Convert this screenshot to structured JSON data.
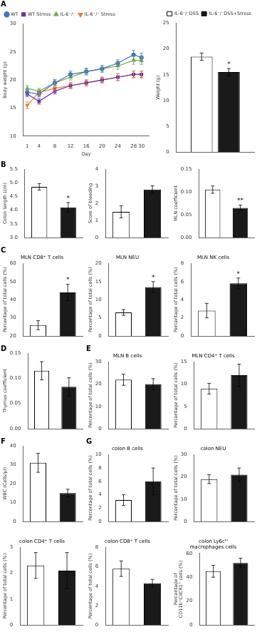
{
  "chart_data": [
    {
      "type": "line",
      "panel_label": "A",
      "xlabel": "Day",
      "ylabel": "Body weight (g)",
      "x": [
        1,
        4,
        8,
        12,
        16,
        20,
        24,
        28,
        30
      ],
      "xlim": [
        0,
        32
      ],
      "xticks": [
        1,
        4,
        8,
        12,
        16,
        20,
        24,
        28,
        30
      ],
      "ylim": [
        10,
        30
      ],
      "yticks": [
        10,
        15,
        20,
        25,
        30
      ],
      "grid": false,
      "legend": "upper left",
      "series": [
        {
          "name": "WT",
          "color": "#4472C4",
          "marker": "circle",
          "values": [
            17.8,
            17.5,
            19.5,
            21.0,
            21.5,
            22.0,
            23.0,
            24.5,
            24.0
          ],
          "errors": [
            0.5,
            0.5,
            0.6,
            0.6,
            0.6,
            0.6,
            0.6,
            0.8,
            0.8
          ]
        },
        {
          "name": "WT Stress",
          "color": "#7030A0",
          "marker": "square",
          "values": [
            17.5,
            16.2,
            18.0,
            19.0,
            19.5,
            20.0,
            20.5,
            21.0,
            21.0
          ],
          "errors": [
            0.5,
            0.5,
            0.5,
            0.5,
            0.5,
            0.5,
            0.6,
            0.6,
            0.6
          ]
        },
        {
          "name": "IL-6⁻/⁻",
          "color": "#70AD47",
          "marker": "triangle-up",
          "values": [
            18.5,
            18.0,
            19.5,
            20.5,
            21.5,
            22.0,
            22.5,
            23.5,
            23.5
          ],
          "errors": [
            0.5,
            0.5,
            0.5,
            0.5,
            0.5,
            0.6,
            0.6,
            0.7,
            0.7
          ]
        },
        {
          "name": "IL-6⁻/⁻ Stress",
          "color": "#ED7D31",
          "marker": "triangle-down",
          "values": [
            15.5,
            17.8,
            18.5,
            19.0,
            19.5,
            20.0,
            20.5,
            21.0,
            21.0
          ],
          "errors": [
            0.6,
            0.5,
            0.5,
            0.5,
            0.5,
            0.5,
            0.6,
            0.6,
            0.6
          ]
        }
      ]
    },
    {
      "type": "bar",
      "ylabel": "Weight (g)",
      "categories": [
        null
      ],
      "ylim": [
        0,
        25
      ],
      "yticks": [
        0,
        5,
        10,
        15,
        20,
        25
      ],
      "grid": false,
      "legend": "upper right",
      "tick_labels": "y",
      "series": [
        {
          "name": "IL-6⁻/⁻DSS",
          "color": "#FFFFFF",
          "values": [
            18.5
          ],
          "errors": [
            0.7
          ]
        },
        {
          "name": "IL-6⁻/⁻DSS+Stress",
          "color": "#1a1a1a",
          "values": [
            15.5
          ],
          "errors": [
            0.7
          ]
        }
      ],
      "annotations": [
        {
          "text": "*",
          "series": "IL-6⁻/⁻DSS+Stress",
          "index": 0
        }
      ]
    },
    {
      "type": "bar",
      "panel_label": "B",
      "ylabel": "Colon length (cm)",
      "categories": [
        null,
        null
      ],
      "values": [
        4.85,
        4.1
      ],
      "errors": [
        0.12,
        0.18
      ],
      "colors": [
        "#FFFFFF",
        "#1a1a1a"
      ],
      "ylim": [
        3.0,
        5.5
      ],
      "yticks": [
        {
          "value": 3.0,
          "label": "3.0"
        },
        {
          "value": 3.5,
          "label": "3.5"
        },
        {
          "value": 4.0,
          "label": "4.0"
        },
        {
          "value": 4.5,
          "label": "4.5"
        },
        {
          "value": 5.0,
          "label": "5.0"
        },
        {
          "value": 5.5,
          "label": "5.5"
        }
      ],
      "grid": false,
      "tick_labels": "y",
      "annotations": [
        {
          "text": "*",
          "index": 1
        }
      ]
    },
    {
      "type": "bar",
      "ylabel": "Score of bleeding",
      "categories": [
        null,
        null
      ],
      "values": [
        1.5,
        2.8
      ],
      "errors": [
        0.35,
        0.22
      ],
      "colors": [
        "#FFFFFF",
        "#1a1a1a"
      ],
      "ylim": [
        0,
        4
      ],
      "yticks": [
        0,
        1,
        2,
        3,
        4
      ],
      "grid": false,
      "tick_labels": "y"
    },
    {
      "type": "bar",
      "ylabel": "MLN coefficient",
      "categories": [
        null,
        null
      ],
      "values": [
        0.105,
        0.065
      ],
      "errors": [
        0.008,
        0.006
      ],
      "colors": [
        "#FFFFFF",
        "#1a1a1a"
      ],
      "ylim": [
        0.0,
        0.15
      ],
      "yticks": [
        {
          "value": 0.0,
          "label": "0.00"
        },
        {
          "value": 0.05,
          "label": "0.05"
        },
        {
          "value": 0.1,
          "label": "0.10"
        },
        {
          "value": 0.15,
          "label": "0.15"
        }
      ],
      "grid": false,
      "tick_labels": "y",
      "annotations": [
        {
          "text": "**",
          "index": 1
        }
      ]
    },
    {
      "type": "bar",
      "panel_label": "C",
      "title": "MLN CD8⁺ T cells",
      "ylabel": "Percentage of total cells (%)",
      "categories": [
        null,
        null
      ],
      "values": [
        26.0,
        44.0
      ],
      "errors": [
        2.5,
        4.5
      ],
      "colors": [
        "#FFFFFF",
        "#1a1a1a"
      ],
      "ylim": [
        20,
        60
      ],
      "yticks": [
        20,
        30,
        40,
        50,
        60
      ],
      "grid": false,
      "tick_labels": "y",
      "annotations": [
        {
          "text": "*",
          "index": 1
        }
      ]
    },
    {
      "type": "bar",
      "title": "MLN NEU",
      "ylabel": "Percentage of total cells (%)",
      "categories": [
        null,
        null
      ],
      "values": [
        6.5,
        13.5
      ],
      "errors": [
        0.8,
        1.5
      ],
      "colors": [
        "#FFFFFF",
        "#1a1a1a"
      ],
      "ylim": [
        0,
        20
      ],
      "yticks": [
        0,
        5,
        10,
        15,
        20
      ],
      "grid": false,
      "tick_labels": "y",
      "annotations": [
        {
          "text": "*",
          "index": 1
        }
      ]
    },
    {
      "type": "bar",
      "title": "MLN NK cells",
      "ylabel": "Percentage of total cells (%)",
      "categories": [
        null,
        null
      ],
      "values": [
        2.8,
        5.8
      ],
      "errors": [
        0.8,
        0.6
      ],
      "colors": [
        "#FFFFFF",
        "#1a1a1a"
      ],
      "ylim": [
        0,
        8
      ],
      "yticks": [
        0,
        2,
        4,
        6,
        8
      ],
      "grid": false,
      "tick_labels": "y",
      "annotations": [
        {
          "text": "*",
          "index": 1
        }
      ]
    },
    {
      "type": "bar",
      "panel_label": "D",
      "ylabel": "Thymus coefficient",
      "categories": [
        null,
        null
      ],
      "values": [
        0.115,
        0.083
      ],
      "errors": [
        0.018,
        0.018
      ],
      "colors": [
        "#FFFFFF",
        "#1a1a1a"
      ],
      "ylim": [
        0.0,
        0.15
      ],
      "yticks": [
        {
          "value": 0.0,
          "label": "0.00"
        },
        {
          "value": 0.05,
          "label": "0.05"
        },
        {
          "value": 0.1,
          "label": "0.10"
        },
        {
          "value": 0.15,
          "label": "0.15"
        }
      ],
      "grid": false,
      "tick_labels": "y"
    },
    {
      "type": "bar",
      "panel_label": "E",
      "title": "MLN B cells",
      "ylabel": "Percentage of total cells (%)",
      "categories": [
        null,
        null
      ],
      "values": [
        22.0,
        20.0
      ],
      "errors": [
        2.5,
        2.5
      ],
      "colors": [
        "#FFFFFF",
        "#1a1a1a"
      ],
      "ylim": [
        0,
        30
      ],
      "yticks": [
        0,
        10,
        20,
        30
      ],
      "grid": false,
      "tick_labels": "y"
    },
    {
      "type": "bar",
      "title": "MLN CD4⁺ T cells",
      "ylabel": "Percentage of total cells (%)",
      "categories": [
        null,
        null
      ],
      "values": [
        9.0,
        12.0
      ],
      "errors": [
        1.2,
        2.5
      ],
      "colors": [
        "#FFFFFF",
        "#1a1a1a"
      ],
      "ylim": [
        0,
        15
      ],
      "yticks": [
        0,
        5,
        10,
        15
      ],
      "grid": false,
      "tick_labels": "y"
    },
    {
      "type": "bar",
      "panel_label": "F",
      "ylabel": "WBC (Cells/μl)",
      "categories": [
        null,
        null
      ],
      "values": [
        31.0,
        15.0
      ],
      "errors": [
        5.0,
        2.0
      ],
      "colors": [
        "#FFFFFF",
        "#1a1a1a"
      ],
      "ylim": [
        0,
        40
      ],
      "yticks": [
        0,
        10,
        20,
        30,
        40
      ],
      "grid": false,
      "tick_labels": "y"
    },
    {
      "type": "bar",
      "panel_label": "G",
      "title": "colon B cells",
      "ylabel": "Percentage of total cells (%)",
      "categories": [
        null,
        null
      ],
      "values": [
        3.2,
        6.0
      ],
      "errors": [
        0.8,
        2.0
      ],
      "colors": [
        "#FFFFFF",
        "#1a1a1a"
      ],
      "ylim": [
        0,
        10
      ],
      "yticks": [
        0,
        2,
        4,
        6,
        8,
        10
      ],
      "grid": false,
      "tick_labels": "y"
    },
    {
      "type": "bar",
      "title": "colon NEU",
      "ylabel": "Percentage of total cells (%)",
      "categories": [
        null,
        null
      ],
      "values": [
        19.0,
        21.0
      ],
      "errors": [
        2.0,
        3.0
      ],
      "colors": [
        "#FFFFFF",
        "#1a1a1a"
      ],
      "ylim": [
        0,
        30
      ],
      "yticks": [
        0,
        10,
        20,
        30
      ],
      "grid": false,
      "tick_labels": "y"
    },
    {
      "type": "bar",
      "title": "colon CD4⁺ T cells",
      "ylabel": "Percentage of total cells (%)",
      "categories": [
        null,
        null
      ],
      "values": [
        2.3,
        2.1
      ],
      "errors": [
        0.5,
        0.7
      ],
      "colors": [
        "#FFFFFF",
        "#1a1a1a"
      ],
      "ylim": [
        0,
        3
      ],
      "yticks": [
        0,
        1,
        2,
        3
      ],
      "grid": false,
      "tick_labels": "y"
    },
    {
      "type": "bar",
      "title": "colon CD8⁺ T cells",
      "ylabel": "Percentage of total cells (%)",
      "categories": [
        null,
        null
      ],
      "values": [
        5.8,
        4.3
      ],
      "errors": [
        0.8,
        0.4
      ],
      "colors": [
        "#FFFFFF",
        "#1a1a1a"
      ],
      "ylim": [
        0,
        8
      ],
      "yticks": [
        0,
        2,
        4,
        6,
        8
      ],
      "grid": false,
      "tick_labels": "y"
    },
    {
      "type": "bar",
      "title": "colon Ly6cʰⁱ\nmacrophages cells",
      "ylabel": "Percentage of\nCD11b⁺CXCR1⁺ cells (%)",
      "categories": [
        null,
        null
      ],
      "values": [
        45.0,
        52.0
      ],
      "errors": [
        5.0,
        4.0
      ],
      "colors": [
        "#FFFFFF",
        "#1a1a1a"
      ],
      "ylim": [
        0,
        60
      ],
      "yticks": [
        0,
        20,
        40,
        60
      ],
      "grid": false,
      "tick_labels": "y"
    }
  ]
}
